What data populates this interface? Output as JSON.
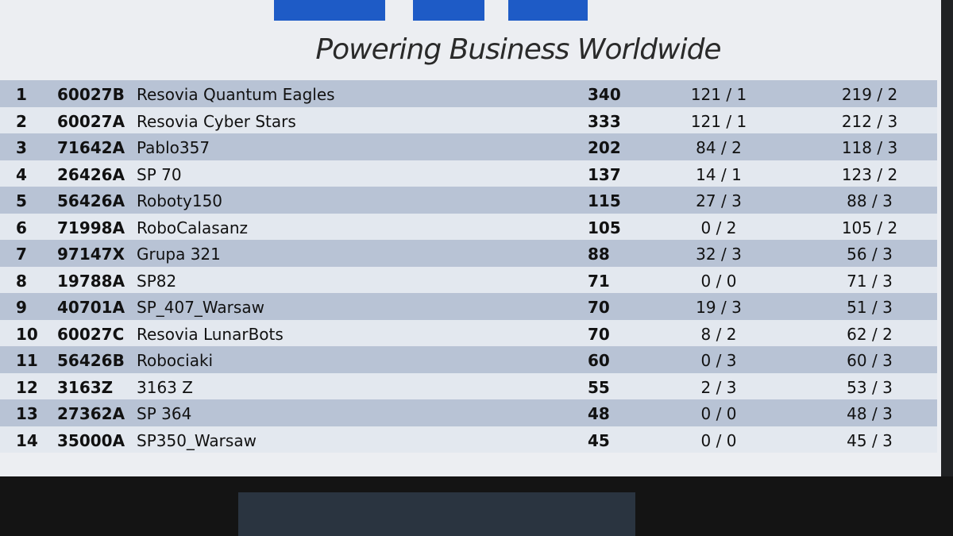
{
  "header": {
    "tagline": "Powering Business Worldwide"
  },
  "table": {
    "rows": [
      [
        "1",
        "60027B",
        "Resovia Quantum Eagles",
        "340",
        "121 / 1",
        "219 / 2"
      ],
      [
        "2",
        "60027A",
        "Resovia Cyber Stars",
        "333",
        "121 / 1",
        "212 / 3"
      ],
      [
        "3",
        "71642A",
        "Pablo357",
        "202",
        "84 / 2",
        "118 / 3"
      ],
      [
        "4",
        "26426A",
        "SP 70",
        "137",
        "14 / 1",
        "123 / 2"
      ],
      [
        "5",
        "56426A",
        "Roboty150",
        "115",
        "27 / 3",
        "88 / 3"
      ],
      [
        "6",
        "71998A",
        "RoboCalasanz",
        "105",
        "0 / 2",
        "105 / 2"
      ],
      [
        "7",
        "97147X",
        "Grupa 321",
        "88",
        "32 / 3",
        "56 / 3"
      ],
      [
        "8",
        "19788A",
        "SP82",
        "71",
        "0 / 0",
        "71 / 3"
      ],
      [
        "9",
        "40701A",
        "SP_407_Warsaw",
        "70",
        "19 / 3",
        "51 / 3"
      ],
      [
        "10",
        "60027C",
        "Resovia LunarBots",
        "70",
        "8 / 2",
        "62 / 2"
      ],
      [
        "11",
        "56426B",
        "Robociaki",
        "60",
        "0 / 3",
        "60 / 3"
      ],
      [
        "12",
        "3163Z",
        "3163 Z",
        "55",
        "2 / 3",
        "53 / 3"
      ],
      [
        "13",
        "27362A",
        "SP 364",
        "48",
        "0 / 0",
        "48 / 3"
      ],
      [
        "14",
        "35000A",
        "SP350_Warsaw",
        "45",
        "0 / 0",
        "45 / 3"
      ]
    ]
  }
}
